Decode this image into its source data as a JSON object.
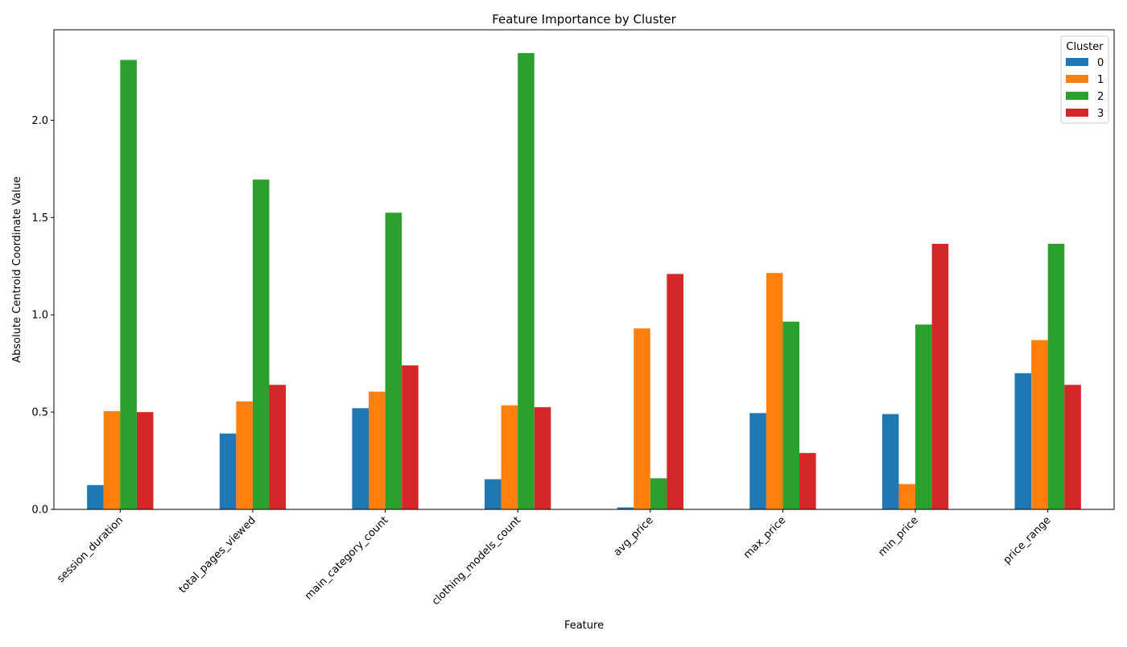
{
  "chart_data": {
    "type": "bar",
    "title": "Feature Importance by Cluster",
    "xlabel": "Feature",
    "ylabel": "Absolute Centroid Coordinate Value",
    "categories": [
      "session_duration",
      "total_pages_viewed",
      "main_category_count",
      "clothing_models_count",
      "avg_price",
      "max_price",
      "min_price",
      "price_range"
    ],
    "series": [
      {
        "name": "0",
        "color": "#1f77b4",
        "values": [
          0.125,
          0.39,
          0.52,
          0.155,
          0.01,
          0.495,
          0.49,
          0.7
        ]
      },
      {
        "name": "1",
        "color": "#ff7f0e",
        "values": [
          0.505,
          0.555,
          0.605,
          0.535,
          0.93,
          1.215,
          0.13,
          0.87
        ]
      },
      {
        "name": "2",
        "color": "#2ca02c",
        "values": [
          2.31,
          1.695,
          1.525,
          2.345,
          0.16,
          0.965,
          0.95,
          1.365
        ]
      },
      {
        "name": "3",
        "color": "#d62728",
        "values": [
          0.5,
          0.64,
          0.74,
          0.525,
          1.21,
          0.29,
          1.365,
          0.64
        ]
      }
    ],
    "ylim": [
      0,
      2.465
    ],
    "yticks": [
      0.0,
      0.5,
      1.0,
      1.5,
      2.0
    ],
    "ytick_labels": [
      "0.0",
      "0.5",
      "1.0",
      "1.5",
      "2.0"
    ],
    "legend": {
      "title": "Cluster",
      "placement": "top-right"
    },
    "grid": false
  }
}
